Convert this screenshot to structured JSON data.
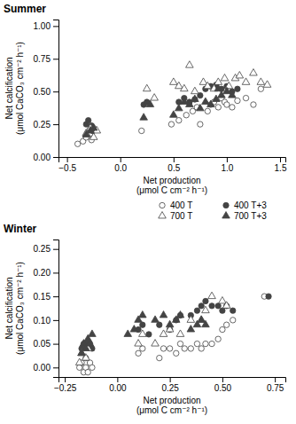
{
  "chart_data": [
    {
      "type": "scatter",
      "title": "Summer",
      "xlabel": "Net production\n(μmol C cm⁻² h⁻¹)",
      "ylabel": "Net calcification\n(μmol CaCO₃ cm⁻² h⁻¹)",
      "xlim": [
        -0.58,
        1.55
      ],
      "ylim": [
        0.0,
        1.05
      ],
      "xticks": [
        {
          "value": -0.5,
          "label": "−0.5"
        },
        {
          "value": 0.0,
          "label": "0.0"
        },
        0.5,
        {
          "value": 1.0,
          "label": "1.0"
        },
        1.5
      ],
      "yticks": [
        {
          "value": 0.0,
          "label": "0.00"
        },
        0.25,
        {
          "value": 0.5,
          "label": "0.50"
        },
        0.75,
        {
          "value": 1.0,
          "label": "1.00"
        }
      ],
      "legend": "right",
      "series": [
        {
          "name": "400 T",
          "marker": "circle-open",
          "color": "#444444",
          "x": [
            -0.4,
            -0.35,
            -0.32,
            -0.3,
            -0.28,
            -0.27,
            -0.25,
            0.2,
            0.48,
            0.55,
            0.62,
            0.68,
            0.72,
            0.75,
            0.82,
            0.85,
            0.88,
            0.92,
            0.95,
            0.98,
            1.0,
            1.05,
            1.1,
            1.18,
            1.25,
            1.32
          ],
          "values": [
            0.1,
            0.12,
            0.15,
            0.18,
            0.18,
            0.13,
            0.22,
            0.2,
            0.25,
            0.28,
            0.32,
            0.35,
            0.38,
            0.25,
            0.35,
            0.4,
            0.42,
            0.38,
            0.45,
            0.42,
            0.4,
            0.38,
            0.43,
            0.45,
            0.4,
            0.52
          ]
        },
        {
          "name": "400 T+3",
          "marker": "circle",
          "color": "#444444",
          "x": [
            -0.32,
            -0.3,
            -0.28,
            -0.27,
            -0.26,
            0.22,
            0.25,
            0.55,
            0.6,
            0.65,
            0.7,
            0.75,
            0.8,
            0.85,
            0.9,
            0.95,
            1.0,
            1.05,
            1.1
          ],
          "values": [
            0.25,
            0.28,
            0.22,
            0.24,
            0.2,
            0.4,
            0.42,
            0.42,
            0.45,
            0.42,
            0.44,
            0.47,
            0.52,
            0.54,
            0.55,
            0.52,
            0.54,
            0.5,
            0.52
          ]
        },
        {
          "name": "700 T",
          "marker": "triangle-open",
          "color": "#444444",
          "x": [
            -0.32,
            -0.28,
            -0.25,
            -0.22,
            0.25,
            0.32,
            0.5,
            0.55,
            0.6,
            0.65,
            0.7,
            0.78,
            0.82,
            0.88,
            0.92,
            0.98,
            1.02,
            1.08,
            1.12,
            1.18,
            1.25,
            1.32,
            1.38
          ],
          "values": [
            0.18,
            0.22,
            0.15,
            0.2,
            0.52,
            0.45,
            0.57,
            0.54,
            0.52,
            0.7,
            0.5,
            0.57,
            0.54,
            0.52,
            0.57,
            0.6,
            0.54,
            0.6,
            0.62,
            0.57,
            0.64,
            0.57,
            0.55
          ]
        },
        {
          "name": "700 T+3",
          "marker": "triangle",
          "color": "#444444",
          "x": [
            -0.32,
            -0.28,
            -0.25,
            0.22,
            0.28,
            0.5,
            0.55,
            0.6,
            0.65,
            0.7,
            0.75,
            0.8,
            0.85,
            0.9,
            0.92,
            0.95,
            1.0,
            1.05
          ],
          "values": [
            0.17,
            0.2,
            0.22,
            0.3,
            0.4,
            0.32,
            0.37,
            0.42,
            0.4,
            0.44,
            0.37,
            0.42,
            0.4,
            0.44,
            0.52,
            0.47,
            0.5,
            0.47
          ]
        }
      ]
    },
    {
      "type": "scatter",
      "title": "Winter",
      "xlabel": "Net production\n(μmol C cm⁻² h⁻¹)",
      "ylabel": "Net calcification\n(μmol CaCO₃ cm⁻² h⁻¹)",
      "xlim": [
        -0.28,
        0.8
      ],
      "ylim": [
        -0.02,
        0.27
      ],
      "xticks": [
        {
          "value": -0.25,
          "label": "−0.25"
        },
        {
          "value": 0.0,
          "label": "0.00"
        },
        0.25,
        {
          "value": 0.5,
          "label": "0.50"
        },
        0.75
      ],
      "yticks": [
        {
          "value": 0.0,
          "label": "0.00"
        },
        0.05,
        {
          "value": 0.1,
          "label": "0.10"
        },
        0.15,
        {
          "value": 0.2,
          "label": "0.20"
        },
        0.25
      ],
      "series": [
        {
          "name": "400 T",
          "marker": "circle-open",
          "color": "#444444",
          "x": [
            -0.18,
            -0.17,
            -0.16,
            -0.15,
            -0.15,
            -0.14,
            -0.13,
            -0.12,
            0.1,
            0.12,
            0.2,
            0.22,
            0.25,
            0.28,
            0.3,
            0.32,
            0.35,
            0.38,
            0.4,
            0.42,
            0.45,
            0.48,
            0.5,
            0.52,
            0.55,
            0.7
          ],
          "values": [
            0.0,
            0.01,
            -0.01,
            0.0,
            0.02,
            -0.01,
            0.01,
            0.0,
            0.03,
            0.04,
            0.02,
            0.04,
            0.04,
            0.03,
            0.05,
            0.04,
            0.04,
            0.05,
            0.04,
            0.05,
            0.05,
            0.06,
            0.08,
            0.09,
            0.1,
            0.15
          ]
        },
        {
          "name": "400 T+3",
          "marker": "circle",
          "color": "#444444",
          "x": [
            -0.17,
            -0.16,
            -0.15,
            -0.14,
            -0.13,
            -0.12,
            0.1,
            0.12,
            0.15,
            0.2,
            0.25,
            0.28,
            0.3,
            0.35,
            0.38,
            0.4,
            0.42,
            0.45,
            0.48,
            0.5,
            0.52,
            0.55,
            0.72
          ],
          "values": [
            0.04,
            0.05,
            0.05,
            0.05,
            0.05,
            0.04,
            0.08,
            0.09,
            0.07,
            0.09,
            0.08,
            0.1,
            0.11,
            0.11,
            0.12,
            0.13,
            0.14,
            0.13,
            0.13,
            0.12,
            0.13,
            0.12,
            0.15
          ]
        },
        {
          "name": "700 T",
          "marker": "triangle-open",
          "color": "#444444",
          "x": [
            -0.18,
            -0.17,
            -0.15,
            -0.14,
            0.1,
            0.12,
            0.18,
            0.22,
            0.25,
            0.3,
            0.35,
            0.4,
            0.42,
            0.45,
            0.5,
            0.52
          ],
          "values": [
            0.01,
            0.03,
            0.02,
            0.04,
            0.05,
            0.07,
            0.05,
            0.07,
            0.08,
            0.07,
            0.1,
            0.1,
            0.12,
            0.15,
            0.14,
            0.13
          ]
        },
        {
          "name": "700 T+3",
          "marker": "triangle",
          "color": "#444444",
          "x": [
            -0.17,
            -0.16,
            -0.15,
            -0.14,
            -0.13,
            -0.12,
            0.05,
            0.08,
            0.1,
            0.12,
            0.18,
            0.22,
            0.25,
            0.28,
            0.3,
            0.35,
            0.38,
            0.4,
            0.42
          ],
          "values": [
            0.03,
            0.05,
            0.04,
            0.06,
            0.05,
            0.07,
            0.07,
            0.08,
            0.1,
            0.11,
            0.1,
            0.11,
            0.09,
            0.1,
            0.11,
            0.08,
            0.09,
            0.1,
            0.09
          ]
        }
      ]
    }
  ]
}
